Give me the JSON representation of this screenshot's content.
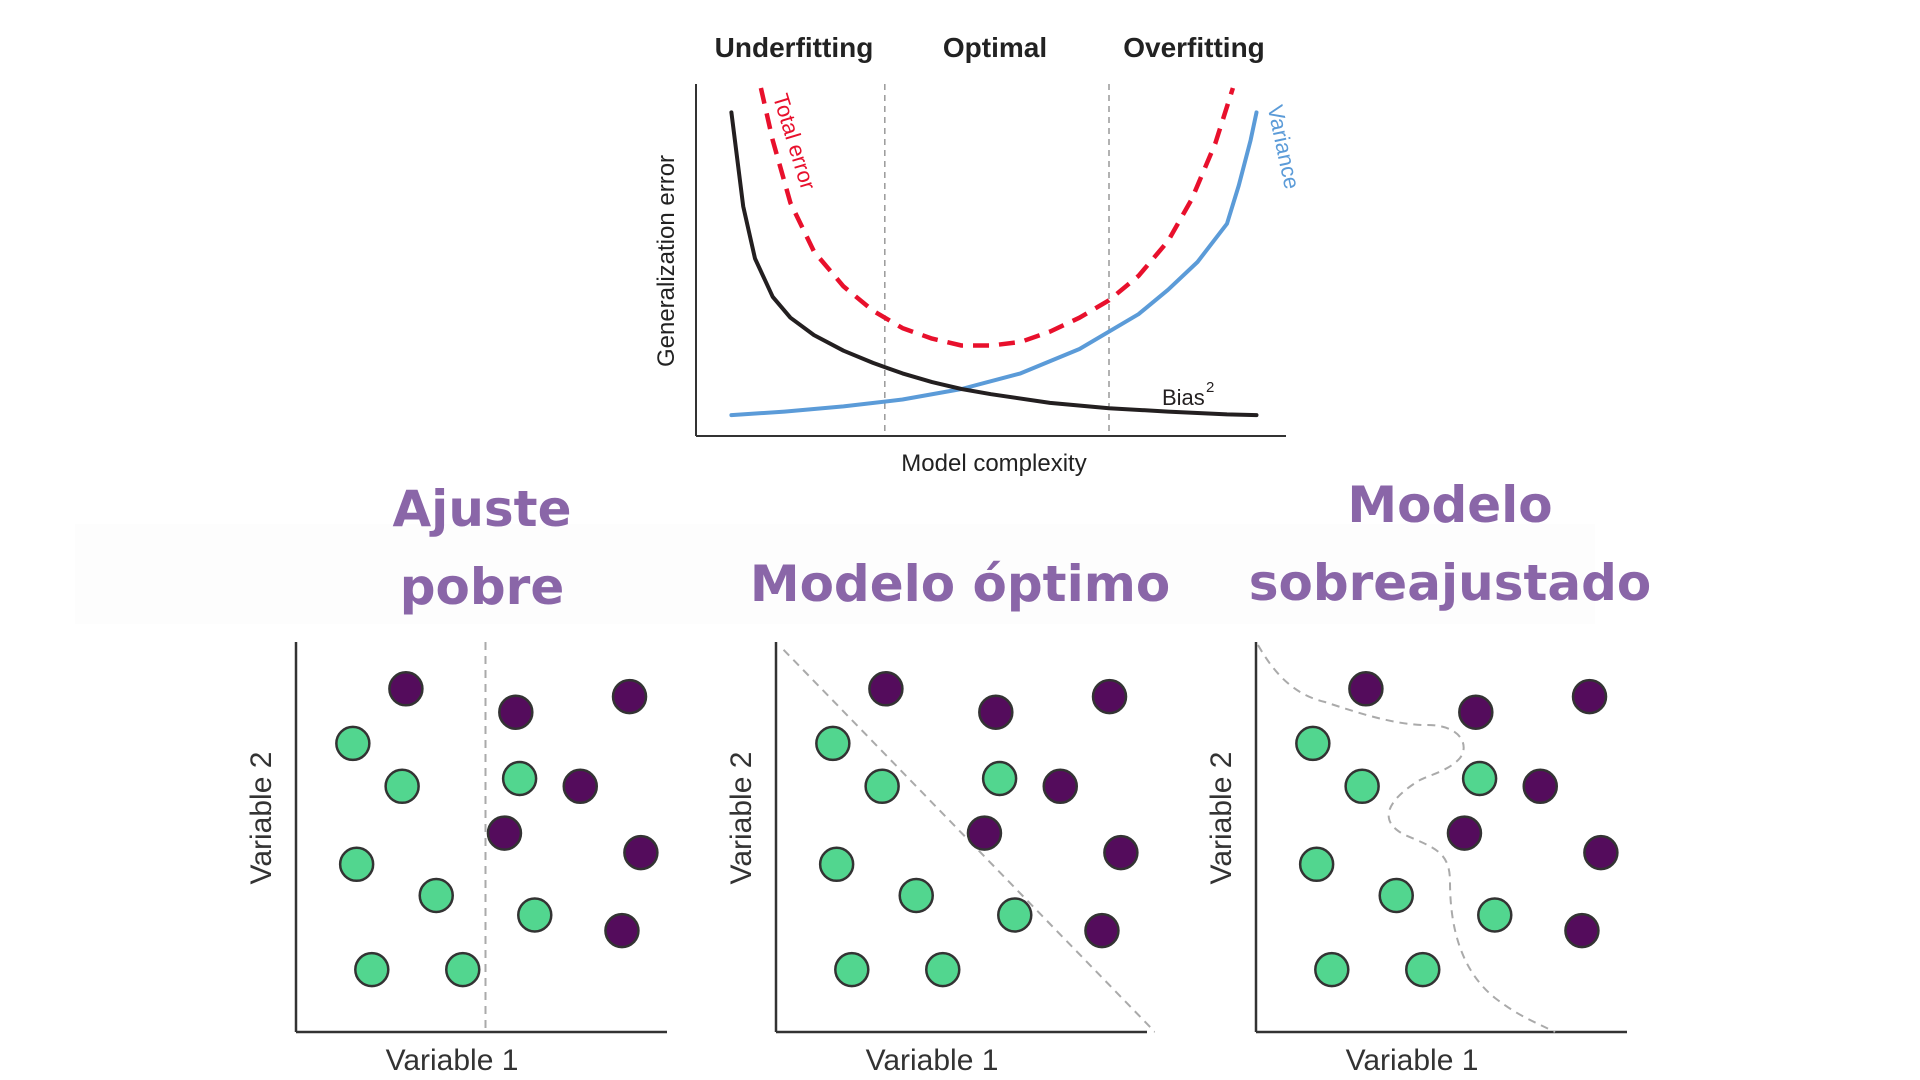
{
  "bias_variance": {
    "phase_labels": [
      "Underfitting",
      "Optimal",
      "Overfitting"
    ],
    "xlabel": "Model complexity",
    "ylabel": "Generalization error",
    "total_error_label": "Total error",
    "variance_label": "Variance",
    "bias_label": "Bias",
    "bias_superscript": "2",
    "colors": {
      "total_error": "#e8102c",
      "variance": "#5b9bd8",
      "bias": "#231f20"
    }
  },
  "panels": [
    {
      "title": "Ajuste\npobre",
      "xlabel": "Variable 1",
      "ylabel": "Variable 2",
      "boundary": "vertical line"
    },
    {
      "title": "Modelo óptimo",
      "xlabel": "Variable 1",
      "ylabel": "Variable 2",
      "boundary": "diagonal line"
    },
    {
      "title": "Modelo\nsobreajustado",
      "xlabel": "Variable 1",
      "ylabel": "Variable 2",
      "boundary": "wavy curve"
    }
  ],
  "chart_data": [
    {
      "type": "line",
      "title": "",
      "xlabel": "Model complexity",
      "ylabel": "Generalization error",
      "x_regions": [
        "Underfitting",
        "Optimal",
        "Overfitting"
      ],
      "x_region_boundaries": [
        3.2,
        7
      ],
      "xlim": [
        0,
        10
      ],
      "ylim": [
        0,
        10
      ],
      "series": [
        {
          "name": "Total error",
          "style": "dashed",
          "color": "#e8102c",
          "x": [
            1.1,
            1.3,
            1.6,
            2,
            2.5,
            3,
            3.5,
            4,
            4.5,
            5,
            5.5,
            6,
            6.5,
            7,
            7.5,
            8,
            8.4,
            8.8,
            9.1
          ],
          "y": [
            10,
            8.5,
            6.7,
            5.3,
            4.3,
            3.6,
            3.1,
            2.8,
            2.6,
            2.6,
            2.7,
            3,
            3.4,
            3.9,
            4.6,
            5.6,
            6.8,
            8.4,
            10
          ]
        },
        {
          "name": "Variance",
          "style": "solid",
          "color": "#5b9bd8",
          "x": [
            0.6,
            1.5,
            2.5,
            3.5,
            4.5,
            5.5,
            6.5,
            7.5,
            8,
            8.5,
            9,
            9.2,
            9.4,
            9.5
          ],
          "y": [
            0.6,
            0.7,
            0.85,
            1.05,
            1.35,
            1.8,
            2.5,
            3.5,
            4.2,
            5,
            6.1,
            7.2,
            8.5,
            9.3
          ]
        },
        {
          "name": "Bias²",
          "style": "solid",
          "color": "#231f20",
          "x": [
            0.6,
            0.8,
            1,
            1.3,
            1.6,
            2,
            2.5,
            3,
            3.5,
            4,
            4.5,
            5,
            6,
            7,
            8,
            9,
            9.5
          ],
          "y": [
            9.3,
            6.6,
            5.1,
            4,
            3.4,
            2.9,
            2.45,
            2.1,
            1.8,
            1.55,
            1.35,
            1.2,
            0.95,
            0.8,
            0.7,
            0.62,
            0.6
          ]
        }
      ]
    },
    {
      "type": "scatter",
      "title": "Ajuste pobre",
      "xlabel": "Variable 1",
      "ylabel": "Variable 2",
      "xlim": [
        0,
        10
      ],
      "ylim": [
        0,
        10
      ],
      "series": [
        {
          "color": "#52d68f",
          "x": [
            1.5,
            2.8,
            1.6,
            3.7,
            2.0,
            4.4
          ],
          "y": [
            7.4,
            6.3,
            4.3,
            3.5,
            1.6,
            1.6
          ]
        },
        {
          "color": "#540c5c",
          "x": [
            2.9,
            5.8,
            8.8,
            7.5,
            5.5,
            9.1,
            8.6
          ],
          "y": [
            8.8,
            8.2,
            8.6,
            6.3,
            5.1,
            4.6,
            2.6
          ]
        },
        {
          "color": "#52d68f",
          "x": [
            5.9,
            6.3
          ],
          "y": [
            6.5,
            3.0
          ]
        }
      ],
      "decision_boundary": {
        "type": "vertical",
        "x": 5.0
      }
    },
    {
      "type": "scatter",
      "title": "Modelo óptimo",
      "xlabel": "Variable 1",
      "ylabel": "Variable 2",
      "xlim": [
        0,
        10
      ],
      "ylim": [
        0,
        10
      ],
      "series": [
        {
          "color": "#52d68f",
          "x": [
            1.5,
            2.8,
            1.6,
            3.7,
            2.0,
            4.4,
            5.9,
            6.3
          ],
          "y": [
            7.4,
            6.3,
            4.3,
            3.5,
            1.6,
            1.6,
            6.5,
            3.0
          ]
        },
        {
          "color": "#540c5c",
          "x": [
            2.9,
            5.8,
            8.8,
            7.5,
            5.5,
            9.1,
            8.6
          ],
          "y": [
            8.8,
            8.2,
            8.6,
            6.3,
            5.1,
            4.6,
            2.6
          ]
        }
      ],
      "decision_boundary": {
        "type": "diagonal",
        "from": [
          0.2,
          9.8
        ],
        "to": [
          10,
          0
        ]
      }
    },
    {
      "type": "scatter",
      "title": "Modelo sobreajustado",
      "xlabel": "Variable 1",
      "ylabel": "Variable 2",
      "xlim": [
        0,
        10
      ],
      "ylim": [
        0,
        10
      ],
      "series": [
        {
          "color": "#52d68f",
          "x": [
            1.5,
            2.8,
            1.6,
            3.7,
            2.0,
            4.4,
            5.9,
            6.3
          ],
          "y": [
            7.4,
            6.3,
            4.3,
            3.5,
            1.6,
            1.6,
            6.5,
            3.0
          ]
        },
        {
          "color": "#540c5c",
          "x": [
            2.9,
            5.8,
            8.8,
            7.5,
            5.5,
            9.1,
            8.6
          ],
          "y": [
            8.8,
            8.2,
            8.6,
            6.3,
            5.1,
            4.6,
            2.6
          ]
        }
      ],
      "decision_boundary": {
        "type": "wavy"
      }
    }
  ]
}
